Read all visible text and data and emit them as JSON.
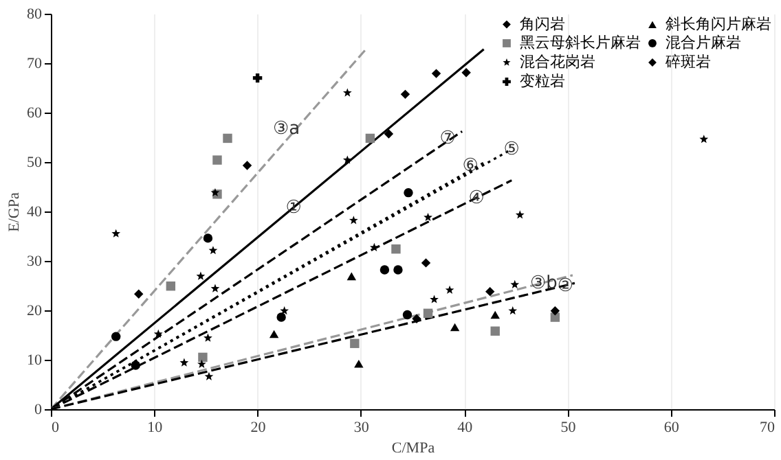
{
  "chart_data": {
    "type": "scatter",
    "xlabel": "C/MPa",
    "ylabel": "E/GPa",
    "xlim": [
      0,
      70
    ],
    "xticks": [
      0,
      10,
      20,
      30,
      40,
      50,
      60,
      70
    ],
    "ylim": [
      0,
      80
    ],
    "yticks": [
      0,
      10,
      20,
      30,
      40,
      50,
      60,
      70,
      80
    ],
    "grid": "x",
    "legend": "top right",
    "series": [
      {
        "name": "角闪岩",
        "type": "scatter",
        "marker": "diamond",
        "color": "#000000",
        "x": [
          32.7,
          34.3,
          37.3,
          40.2
        ],
        "values": [
          55.7,
          63.7,
          67.9,
          68.1
        ]
      },
      {
        "name": "斜长角闪片麻岩",
        "type": "scatter",
        "marker": "triangle",
        "color": "#000000",
        "x": [
          21.6,
          29.1,
          29.8,
          39.1,
          43
        ],
        "values": [
          15.2,
          26.9,
          9.2,
          16.6,
          19.1
        ]
      },
      {
        "name": "黑云母斜长片麻岩",
        "type": "scatter",
        "marker": "square",
        "color": "#808080",
        "x": [
          17.1,
          16.1,
          16.1,
          30.9,
          11.6,
          14.7,
          29.4,
          33.4,
          36.5,
          43,
          48.8
        ],
        "values": [
          54.8,
          50.4,
          43.5,
          54.8,
          24.9,
          10.5,
          13.3,
          32.4,
          19.4,
          15.8,
          18.6
        ]
      },
      {
        "name": "混合片麻岩",
        "type": "scatter",
        "marker": "circle",
        "color": "#000000",
        "x": [
          15.2,
          6.3,
          8.2,
          22.3,
          32.3,
          33.6,
          34.5,
          34.6
        ],
        "values": [
          34.6,
          14.7,
          8.9,
          18.6,
          28.2,
          28.2,
          19.1,
          43.8
        ]
      },
      {
        "name": "混合花岗岩",
        "type": "scatter",
        "marker": "star",
        "color": "#000000",
        "x": [
          28.7,
          28.7,
          15.9,
          29.3,
          6.3,
          63.2,
          45.4,
          36.5,
          15.7,
          14.5,
          15.9,
          22.6,
          15.2,
          12.9,
          14.6,
          15.3,
          10.4,
          31.3,
          37.1,
          38.6,
          44.9,
          44.7
        ],
        "values": [
          64,
          50.4,
          43.8,
          38.2,
          35.5,
          54.6,
          39.3,
          38.8,
          32.1,
          26.9,
          24.4,
          19.9,
          14.4,
          9.4,
          9.1,
          6.6,
          15.2,
          32.7,
          22.2,
          24.1,
          25.2,
          19.9
        ]
      },
      {
        "name": "碎斑岩",
        "type": "scatter",
        "marker": "diamond",
        "color": "#000000",
        "x": [
          19,
          8.5,
          36.3,
          42.5,
          35.4,
          48.8
        ],
        "values": [
          49.3,
          23.3,
          29.6,
          23.8,
          18.3,
          19.9
        ]
      },
      {
        "name": "变粒岩",
        "type": "scatter",
        "marker": "cross",
        "color": "#000000",
        "x": [
          20
        ],
        "values": [
          67
        ]
      },
      {
        "type": "line",
        "line_style": "dashed",
        "color": "#999999",
        "x": [
          0,
          30.4
        ],
        "values": [
          0,
          72.6
        ]
      },
      {
        "type": "line",
        "line_style": "solid",
        "color": "#000000",
        "x": [
          0,
          41.9
        ],
        "values": [
          0,
          72.8
        ]
      },
      {
        "type": "line",
        "line_style": "dashed",
        "color": "#000000",
        "x": [
          0,
          39.8
        ],
        "values": [
          0,
          56.2
        ]
      },
      {
        "type": "line",
        "line_style": "dotted",
        "color": "#000000",
        "x": [
          0,
          42
        ],
        "values": [
          0,
          50
        ]
      },
      {
        "type": "line",
        "line_style": "dotted",
        "color": "#000000",
        "x": [
          0,
          44.6
        ],
        "values": [
          0,
          52.6
        ]
      },
      {
        "type": "line",
        "line_style": "dashed",
        "color": "#000000",
        "x": [
          0,
          44.6
        ],
        "values": [
          0,
          46.3
        ]
      },
      {
        "type": "line",
        "line_style": "dashed",
        "color": "#999999",
        "x": [
          0,
          50.5
        ],
        "values": [
          0,
          27.1
        ]
      },
      {
        "type": "line",
        "line_style": "dashed",
        "color": "#000000",
        "x": [
          0,
          50.7
        ],
        "values": [
          0,
          25.5
        ]
      }
    ],
    "annotations": [
      {
        "text": "③a",
        "x": 22.8,
        "y": 56.8
      },
      {
        "text": "①",
        "x": 23.5,
        "y": 40.8
      },
      {
        "text": "⑦",
        "x": 38.4,
        "y": 54.8
      },
      {
        "text": "⑥",
        "x": 40.6,
        "y": 49.3
      },
      {
        "text": "⑤",
        "x": 44.6,
        "y": 52.6
      },
      {
        "text": "④",
        "x": 41.2,
        "y": 42.8
      },
      {
        "text": "③b",
        "x": 47.7,
        "y": 25.6
      },
      {
        "text": "②",
        "x": 49.8,
        "y": 25
      }
    ]
  }
}
